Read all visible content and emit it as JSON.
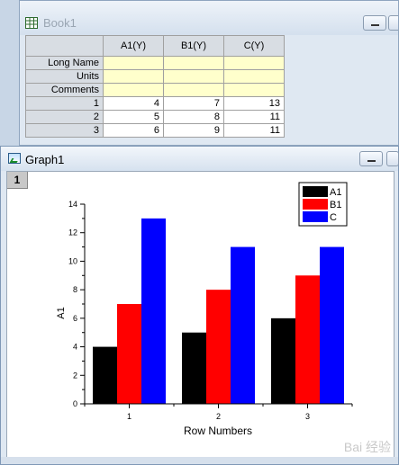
{
  "book": {
    "title": "Book1",
    "columns": [
      "A1(Y)",
      "B1(Y)",
      "C(Y)"
    ],
    "meta_rows": [
      "Long Name",
      "Units",
      "Comments"
    ],
    "rows": [
      {
        "index": "1",
        "values": [
          "4",
          "7",
          "13"
        ]
      },
      {
        "index": "2",
        "values": [
          "5",
          "8",
          "11"
        ]
      },
      {
        "index": "3",
        "values": [
          "6",
          "9",
          "11"
        ]
      }
    ]
  },
  "graph": {
    "title": "Graph1",
    "layer_label": "1",
    "watermark": "Bai 经验"
  },
  "colors": {
    "A1": "#000000",
    "B1": "#ff0000",
    "C": "#0000ff"
  },
  "chart_data": {
    "type": "bar",
    "categories": [
      "1",
      "2",
      "3"
    ],
    "series": [
      {
        "name": "A1",
        "values": [
          4,
          5,
          6
        ]
      },
      {
        "name": "B1",
        "values": [
          7,
          8,
          9
        ]
      },
      {
        "name": "C",
        "values": [
          13,
          11,
          11
        ]
      }
    ],
    "xlabel": "Row Numbers",
    "ylabel": "A1",
    "ylim": [
      0,
      14
    ],
    "yticks": [
      "0",
      "2",
      "4",
      "6",
      "8",
      "10",
      "12",
      "14"
    ],
    "grid": false,
    "legend_position": "top-right"
  }
}
